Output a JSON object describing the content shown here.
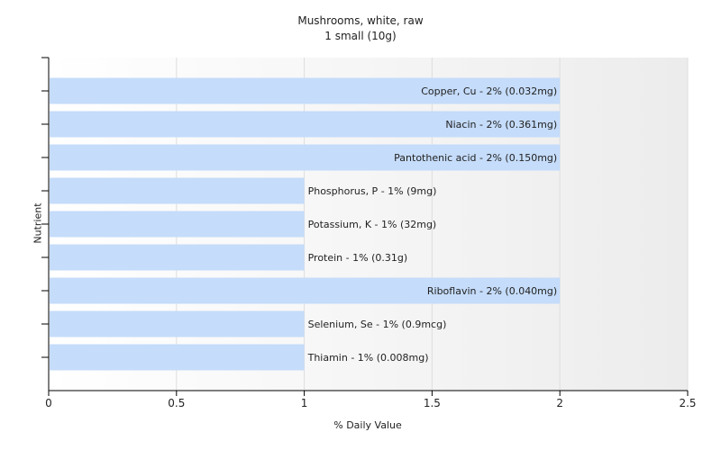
{
  "title": "Mushrooms, white, raw",
  "subtitle": "1 small (10g)",
  "chart_data": {
    "type": "bar",
    "orientation": "horizontal",
    "title": "Mushrooms, white, raw",
    "subtitle": "1 small (10g)",
    "xlabel": "% Daily Value",
    "ylabel": "Nutrient",
    "xlim": [
      0,
      2.5
    ],
    "xticks": [
      "0",
      "0.5",
      "1",
      "1.5",
      "2",
      "2.5"
    ],
    "grid": true,
    "categories": [
      "Copper, Cu",
      "Niacin",
      "Pantothenic acid",
      "Phosphorus, P",
      "Potassium, K",
      "Protein",
      "Riboflavin",
      "Selenium, Se",
      "Thiamin"
    ],
    "values": [
      2,
      2,
      2,
      1,
      1,
      1,
      2,
      1,
      1
    ],
    "labels": [
      "Copper, Cu - 2% (0.032mg)",
      "Niacin - 2% (0.361mg)",
      "Pantothenic acid - 2% (0.150mg)",
      "Phosphorus, P - 1% (9mg)",
      "Potassium, K - 1% (32mg)",
      "Protein - 1% (0.31g)",
      "Riboflavin - 2% (0.040mg)",
      "Selenium, Se - 1% (0.9mcg)",
      "Thiamin - 1% (0.008mg)"
    ],
    "bar_color": "#c5dcfa"
  }
}
